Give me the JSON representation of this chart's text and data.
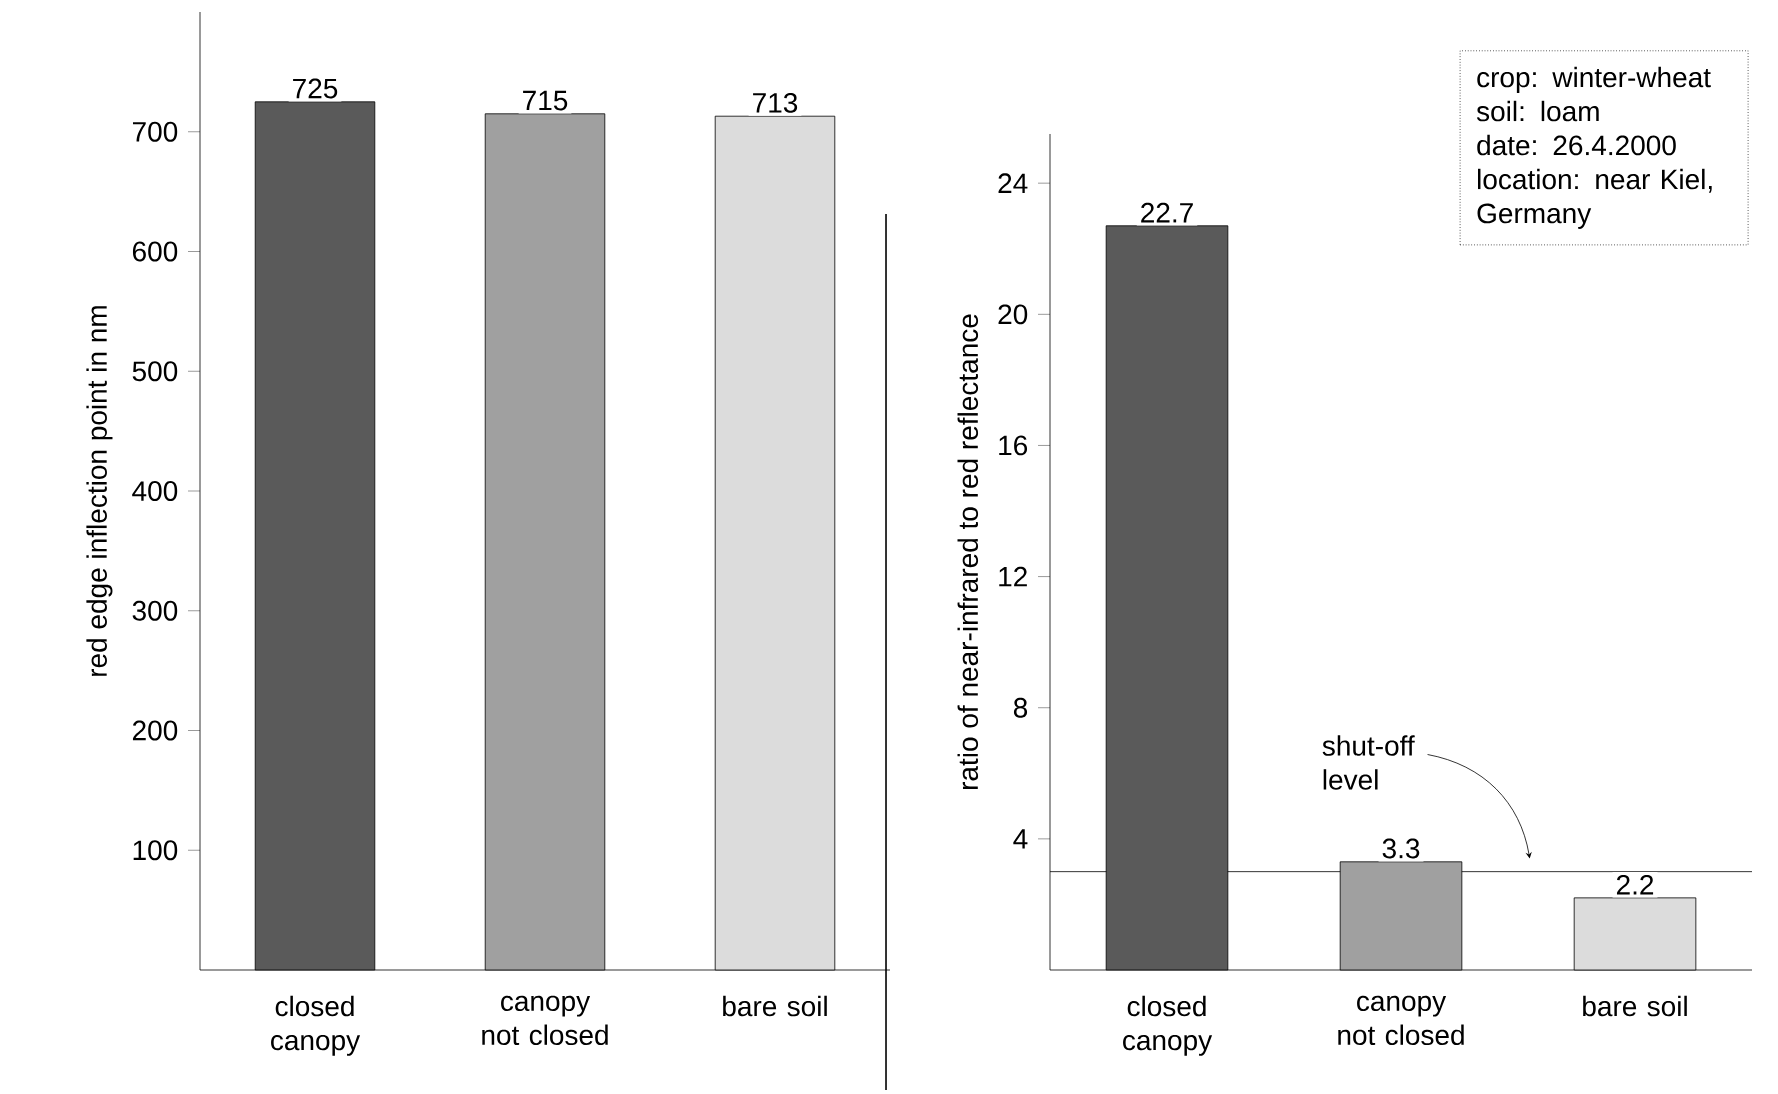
{
  "chart_data": [
    {
      "type": "bar",
      "ylabel": "red edge inflection point in nm",
      "categories": [
        "closed canopy",
        "canopy not closed",
        "bare soil"
      ],
      "values": [
        725,
        715,
        713
      ],
      "colors": [
        "#5a5a5a",
        "#a0a0a0",
        "#dcdcdc"
      ],
      "ylim": [
        0,
        800
      ],
      "yticks": [
        100,
        200,
        300,
        400,
        500,
        600,
        700
      ],
      "data_labels": true
    },
    {
      "type": "bar",
      "ylabel": "ratio of near-infrared to red reflectance",
      "categories": [
        "closed canopy",
        "canopy not closed",
        "bare soil"
      ],
      "values": [
        22.7,
        3.3,
        2.2
      ],
      "colors": [
        "#5a5a5a",
        "#a0a0a0",
        "#dcdcdc"
      ],
      "ylim": [
        0,
        25.5
      ],
      "yticks": [
        4,
        8,
        12,
        16,
        20,
        24
      ],
      "data_labels": true,
      "ref_lines": [
        {
          "axis": "y",
          "value": 3,
          "label": "shut-off level"
        }
      ],
      "annotations": [
        "crop: winter-wheat",
        "soil: loam",
        "date: 26.4.2000",
        "location: near Kiel, Germany"
      ]
    }
  ]
}
